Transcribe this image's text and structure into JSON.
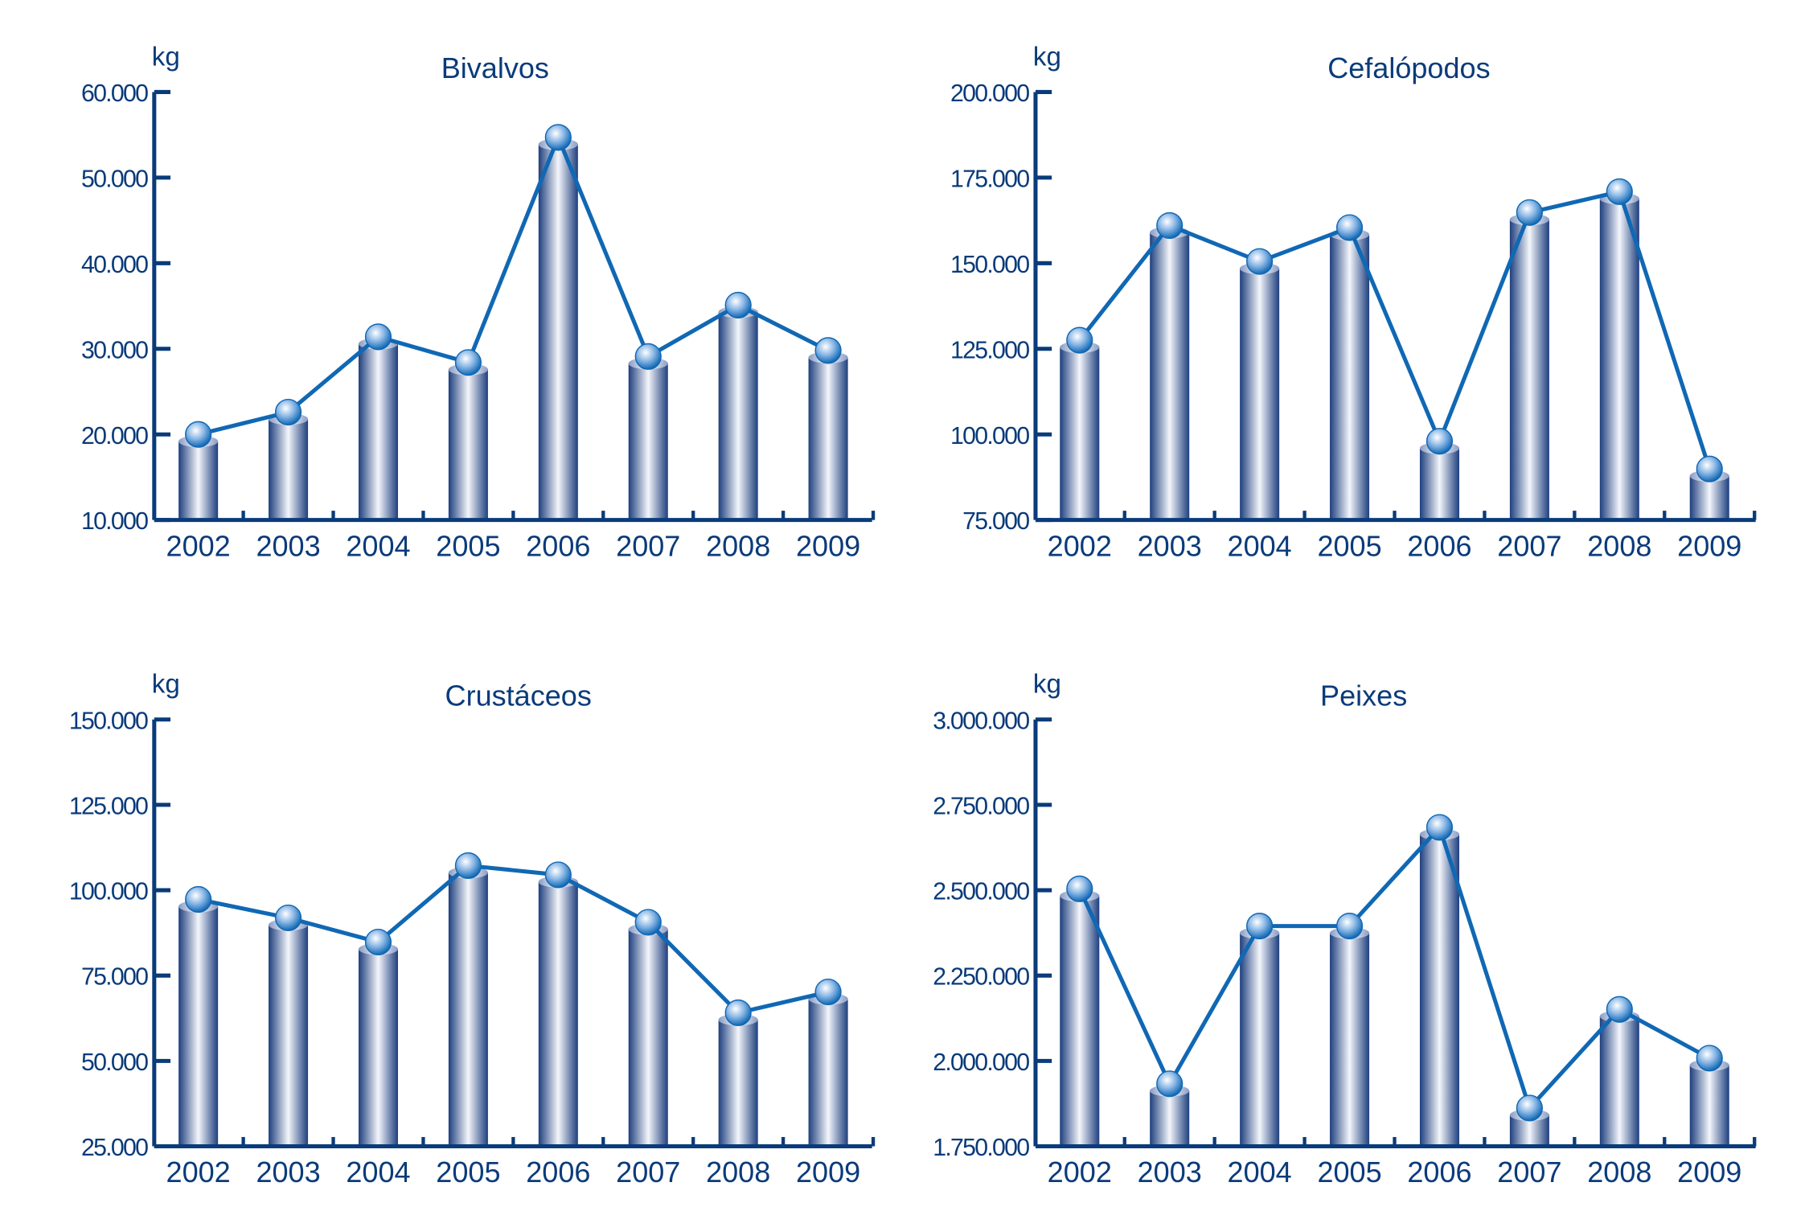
{
  "colors": {
    "axis": "#0a3b7a",
    "line": "#1068b4",
    "bar_dark": "#1e3f7e",
    "bar_light": "#f4f6fb"
  },
  "chart_data": [
    {
      "type": "bar+line",
      "title": "Bivalvos",
      "ylabel": "kg",
      "categories": [
        "2002",
        "2003",
        "2004",
        "2005",
        "2006",
        "2007",
        "2008",
        "2009"
      ],
      "values": [
        20000,
        22600,
        31400,
        28400,
        54700,
        29100,
        35100,
        29800
      ],
      "ylim": [
        10000,
        60000
      ],
      "yticks": [
        10000,
        20000,
        30000,
        40000,
        50000,
        60000
      ],
      "ytick_labels": [
        "10.000",
        "20.000",
        "30.000",
        "40.000",
        "50.000",
        "60.000"
      ]
    },
    {
      "type": "bar+line",
      "title": "Cefalópodos",
      "ylabel": "kg",
      "categories": [
        "2002",
        "2003",
        "2004",
        "2005",
        "2006",
        "2007",
        "2008",
        "2009"
      ],
      "values": [
        127500,
        161000,
        150500,
        160400,
        98000,
        164800,
        170900,
        89900
      ],
      "ylim": [
        75000,
        200000
      ],
      "yticks": [
        75000,
        100000,
        125000,
        150000,
        175000,
        200000
      ],
      "ytick_labels": [
        "75.000",
        "100.000",
        "125.000",
        "150.000",
        "175.000",
        "200.000"
      ]
    },
    {
      "type": "bar+line",
      "title": "Crustáceos",
      "ylabel": "kg",
      "categories": [
        "2002",
        "2003",
        "2004",
        "2005",
        "2006",
        "2007",
        "2008",
        "2009"
      ],
      "values": [
        97300,
        91900,
        84800,
        107200,
        104500,
        90600,
        64100,
        70200
      ],
      "ylim": [
        25000,
        150000
      ],
      "yticks": [
        25000,
        50000,
        75000,
        100000,
        125000,
        150000
      ],
      "ytick_labels": [
        "25.000",
        "50.000",
        "75.000",
        "100.000",
        "125.000",
        "150.000"
      ]
    },
    {
      "type": "bar+line",
      "title": "Peixes",
      "ylabel": "kg",
      "categories": [
        "2002",
        "2003",
        "2004",
        "2005",
        "2006",
        "2007",
        "2008",
        "2009"
      ],
      "values": [
        2504000,
        1933000,
        2395000,
        2395000,
        2684000,
        1862000,
        2151000,
        2008000
      ],
      "ylim": [
        1750000,
        3000000
      ],
      "yticks": [
        1750000,
        2000000,
        2250000,
        2500000,
        2750000,
        3000000
      ],
      "ytick_labels": [
        "1.750.000",
        "2.000.000",
        "2.250.000",
        "2.500.000",
        "2.750.000",
        "3.000.000"
      ]
    }
  ]
}
